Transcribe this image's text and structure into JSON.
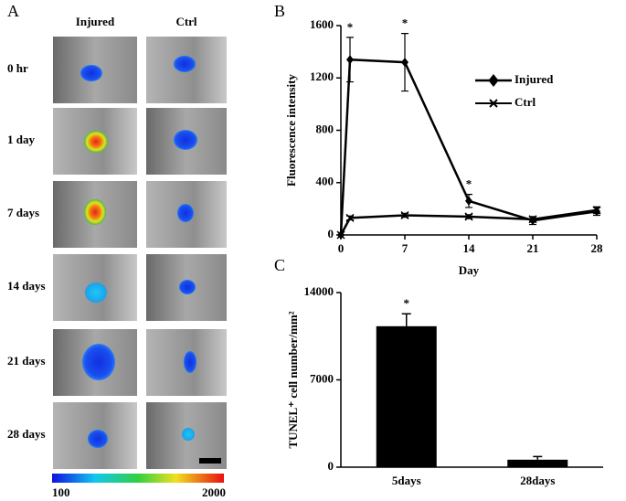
{
  "panel_a": {
    "label": "A",
    "columns": [
      "Injured",
      "Ctrl"
    ],
    "rows": [
      "0 hr",
      "1 day",
      "7 days",
      "14 days",
      "21 days",
      "28 days"
    ],
    "colorbar": {
      "min": 100,
      "max": 2000
    }
  },
  "chart_data": [
    {
      "type": "line",
      "panel": "B",
      "xlabel": "Day",
      "ylabel": "Fluorescence intensity",
      "x": [
        0,
        1,
        7,
        14,
        21,
        28
      ],
      "xlim": [
        0,
        28
      ],
      "xticks": [
        0,
        7,
        14,
        21,
        28
      ],
      "ylim": [
        0,
        1600
      ],
      "yticks": [
        0,
        400,
        800,
        1200,
        1600
      ],
      "series": [
        {
          "name": "Injured",
          "color": "#000000",
          "marker": "diamond",
          "values": [
            0,
            1340,
            1320,
            260,
            110,
            180
          ],
          "errors": [
            0,
            170,
            220,
            50,
            30,
            30
          ]
        },
        {
          "name": "Ctrl",
          "color": "#000000",
          "marker": "x",
          "values": [
            0,
            130,
            150,
            140,
            120,
            190
          ],
          "errors": [
            0,
            15,
            15,
            15,
            20,
            25
          ]
        }
      ],
      "annotations": [
        {
          "text": "*",
          "x": 1
        },
        {
          "text": "*",
          "x": 7
        },
        {
          "text": "*",
          "x": 14
        }
      ]
    },
    {
      "type": "bar",
      "panel": "C",
      "ylabel": "TUNEL⁺ cell number/mm²",
      "categories": [
        "5days",
        "28days"
      ],
      "values": [
        11300,
        600
      ],
      "errors": [
        1000,
        250
      ],
      "color": "#000000",
      "ylim": [
        0,
        14000
      ],
      "yticks": [
        0,
        7000,
        14000
      ],
      "annotations": [
        {
          "text": "*",
          "index": 0
        }
      ]
    }
  ]
}
